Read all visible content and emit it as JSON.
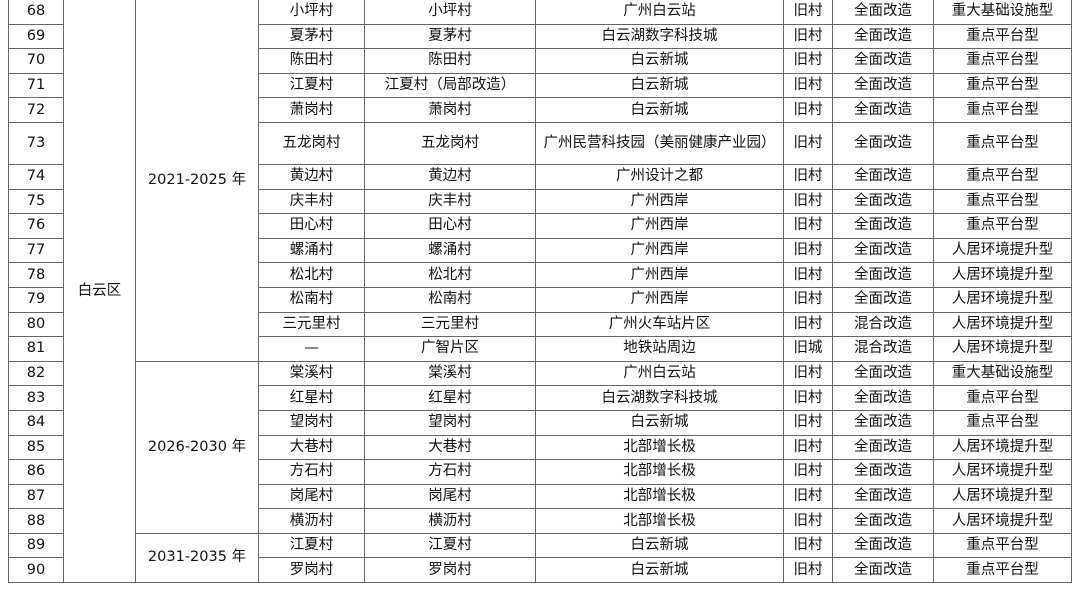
{
  "district": "白云区",
  "periods": [
    "2021-2025 年",
    "2026-2030 年",
    "2031-2035 年"
  ],
  "rows": [
    {
      "no": "68",
      "village": "小坪村",
      "project": "小坪村",
      "area": "广州白云站",
      "type": "旧村",
      "mode": "全面改造",
      "category": "重大基础设施型"
    },
    {
      "no": "69",
      "village": "夏茅村",
      "project": "夏茅村",
      "area": "白云湖数字科技城",
      "type": "旧村",
      "mode": "全面改造",
      "category": "重点平台型"
    },
    {
      "no": "70",
      "village": "陈田村",
      "project": "陈田村",
      "area": "白云新城",
      "type": "旧村",
      "mode": "全面改造",
      "category": "重点平台型"
    },
    {
      "no": "71",
      "village": "江夏村",
      "project": "江夏村（局部改造）",
      "area": "白云新城",
      "type": "旧村",
      "mode": "全面改造",
      "category": "重点平台型"
    },
    {
      "no": "72",
      "village": "萧岗村",
      "project": "萧岗村",
      "area": "白云新城",
      "type": "旧村",
      "mode": "全面改造",
      "category": "重点平台型"
    },
    {
      "no": "73",
      "village": "五龙岗村",
      "project": "五龙岗村",
      "area": "广州民营科技园（美丽健康产业园）",
      "type": "旧村",
      "mode": "全面改造",
      "category": "重点平台型"
    },
    {
      "no": "74",
      "village": "黄边村",
      "project": "黄边村",
      "area": "广州设计之都",
      "type": "旧村",
      "mode": "全面改造",
      "category": "重点平台型"
    },
    {
      "no": "75",
      "village": "庆丰村",
      "project": "庆丰村",
      "area": "广州西岸",
      "type": "旧村",
      "mode": "全面改造",
      "category": "重点平台型"
    },
    {
      "no": "76",
      "village": "田心村",
      "project": "田心村",
      "area": "广州西岸",
      "type": "旧村",
      "mode": "全面改造",
      "category": "重点平台型"
    },
    {
      "no": "77",
      "village": "螺涌村",
      "project": "螺涌村",
      "area": "广州西岸",
      "type": "旧村",
      "mode": "全面改造",
      "category": "人居环境提升型"
    },
    {
      "no": "78",
      "village": "松北村",
      "project": "松北村",
      "area": "广州西岸",
      "type": "旧村",
      "mode": "全面改造",
      "category": "人居环境提升型"
    },
    {
      "no": "79",
      "village": "松南村",
      "project": "松南村",
      "area": "广州西岸",
      "type": "旧村",
      "mode": "全面改造",
      "category": "人居环境提升型"
    },
    {
      "no": "80",
      "village": "三元里村",
      "project": "三元里村",
      "area": "广州火车站片区",
      "type": "旧村",
      "mode": "混合改造",
      "category": "人居环境提升型"
    },
    {
      "no": "81",
      "village": "—",
      "project": "广智片区",
      "area": "地铁站周边",
      "type": "旧城",
      "mode": "混合改造",
      "category": "人居环境提升型"
    },
    {
      "no": "82",
      "village": "棠溪村",
      "project": "棠溪村",
      "area": "广州白云站",
      "type": "旧村",
      "mode": "全面改造",
      "category": "重大基础设施型"
    },
    {
      "no": "83",
      "village": "红星村",
      "project": "红星村",
      "area": "白云湖数字科技城",
      "type": "旧村",
      "mode": "全面改造",
      "category": "重点平台型"
    },
    {
      "no": "84",
      "village": "望岗村",
      "project": "望岗村",
      "area": "白云新城",
      "type": "旧村",
      "mode": "全面改造",
      "category": "重点平台型"
    },
    {
      "no": "85",
      "village": "大巷村",
      "project": "大巷村",
      "area": "北部增长极",
      "type": "旧村",
      "mode": "全面改造",
      "category": "人居环境提升型"
    },
    {
      "no": "86",
      "village": "方石村",
      "project": "方石村",
      "area": "北部增长极",
      "type": "旧村",
      "mode": "全面改造",
      "category": "人居环境提升型"
    },
    {
      "no": "87",
      "village": "岗尾村",
      "project": "岗尾村",
      "area": "北部增长极",
      "type": "旧村",
      "mode": "全面改造",
      "category": "人居环境提升型"
    },
    {
      "no": "88",
      "village": "横沥村",
      "project": "横沥村",
      "area": "北部增长极",
      "type": "旧村",
      "mode": "全面改造",
      "category": "人居环境提升型"
    },
    {
      "no": "89",
      "village": "江夏村",
      "project": "江夏村",
      "area": "白云新城",
      "type": "旧村",
      "mode": "全面改造",
      "category": "重点平台型"
    },
    {
      "no": "90",
      "village": "罗岗村",
      "project": "罗岗村",
      "area": "白云新城",
      "type": "旧村",
      "mode": "全面改造",
      "category": "重点平台型"
    }
  ]
}
